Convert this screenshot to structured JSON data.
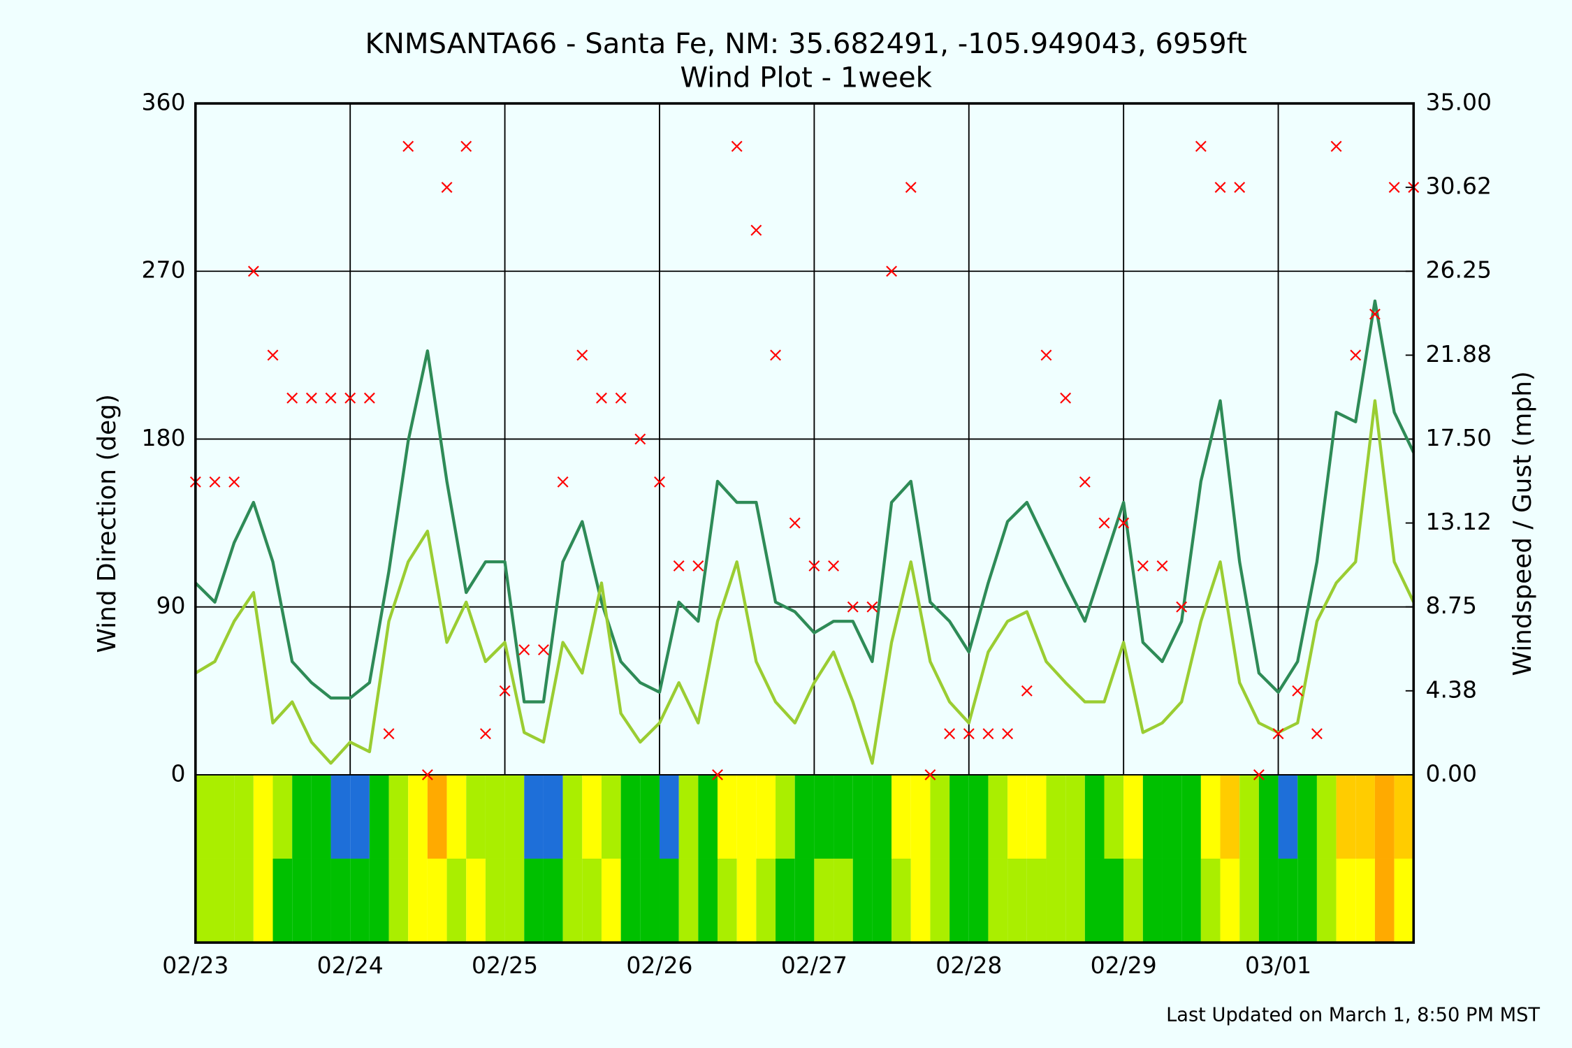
{
  "chart_data": {
    "type": "wind",
    "title": "KNMSANTA66 - Santa Fe, NM: 35.682491, -105.949043, 6959ft",
    "subtitle": "Wind Plot - 1week",
    "y_label": "Wind Direction (deg)",
    "y2_label": "Windspeed / Gust (mph)",
    "footer": "Last Updated on March 1, 8:50 PM MST",
    "x": [
      0,
      0.125,
      0.25,
      0.375,
      0.5,
      0.625,
      0.75,
      0.875,
      1,
      1.125,
      1.25,
      1.375,
      1.5,
      1.625,
      1.75,
      1.875,
      2,
      2.125,
      2.25,
      2.375,
      2.5,
      2.625,
      2.75,
      2.875,
      3,
      3.125,
      3.25,
      3.375,
      3.5,
      3.625,
      3.75,
      3.875,
      4,
      4.125,
      4.25,
      4.375,
      4.5,
      4.625,
      4.75,
      4.875,
      5,
      5.125,
      5.25,
      5.375,
      5.5,
      5.625,
      5.75,
      5.875,
      6,
      6.125,
      6.25,
      6.375,
      6.5,
      6.625,
      6.75,
      6.875,
      7,
      7.125,
      7.25,
      7.375,
      7.5,
      7.625,
      7.75,
      7.875
    ],
    "xlim": [
      0,
      7.875
    ],
    "xticks": [
      {
        "value": 0,
        "label": "02/23"
      },
      {
        "value": 1,
        "label": "02/24"
      },
      {
        "value": 2,
        "label": "02/25"
      },
      {
        "value": 3,
        "label": "02/26"
      },
      {
        "value": 4,
        "label": "02/27"
      },
      {
        "value": 5,
        "label": "02/28"
      },
      {
        "value": 6,
        "label": "02/29"
      },
      {
        "value": 7,
        "label": "03/01"
      }
    ],
    "ylim": [
      -90,
      360
    ],
    "yticks": [
      0,
      90,
      180,
      270,
      360
    ],
    "y2lim": [
      -8.75,
      35
    ],
    "y2ticks": [
      {
        "value": 0,
        "label": "0.00"
      },
      {
        "value": 4.375,
        "label": "4.38"
      },
      {
        "value": 8.75,
        "label": "8.75"
      },
      {
        "value": 13.125,
        "label": "13.12"
      },
      {
        "value": 17.5,
        "label": "17.50"
      },
      {
        "value": 21.875,
        "label": "21.88"
      },
      {
        "value": 26.25,
        "label": "26.25"
      },
      {
        "value": 30.625,
        "label": "30.62"
      },
      {
        "value": 35,
        "label": "35.00"
      }
    ],
    "grid": true,
    "y_label_color": "#ff0000",
    "y2_label_color": "#9acd32",
    "series": [
      {
        "type": "scatter",
        "marker": "x",
        "color": "#ff0000",
        "values": [
          157,
          157,
          157,
          270,
          225,
          202,
          202,
          202,
          202,
          202,
          22,
          337,
          0,
          315,
          337,
          22,
          45,
          67,
          67,
          157,
          225,
          202,
          202,
          180,
          157,
          112,
          112,
          0,
          337,
          292,
          225,
          135,
          112,
          112,
          90,
          90,
          270,
          315,
          0,
          22,
          22,
          22,
          22,
          45,
          225,
          202,
          157,
          135,
          135,
          112,
          112,
          90,
          337,
          315,
          315,
          0,
          22,
          45,
          22,
          337,
          225,
          247,
          315,
          315
        ]
      },
      {
        "type": "line",
        "axis": "y2",
        "color": "#2e8b57",
        "band_colors": [
          "#1e6fd9",
          "#00c000",
          "#aaee00",
          "#ffff00",
          "#ffcc00",
          "#ffaa00",
          "#ff8800",
          "#ff6600",
          "#ff4400"
        ],
        "values": [
          10.0,
          9.0,
          12.1,
          14.2,
          11.1,
          5.9,
          4.8,
          4.0,
          4.0,
          4.8,
          10.6,
          17.4,
          22.1,
          15.3,
          9.5,
          11.1,
          11.1,
          3.8,
          3.8,
          11.1,
          13.2,
          9.0,
          5.9,
          4.8,
          4.3,
          9.0,
          8.0,
          15.3,
          14.2,
          14.2,
          9.0,
          8.5,
          7.4,
          8.0,
          8.0,
          5.9,
          14.2,
          15.3,
          9.0,
          8.0,
          6.4,
          10.0,
          13.2,
          14.2,
          12.1,
          10.0,
          8.0,
          11.1,
          14.2,
          6.9,
          5.9,
          8.0,
          15.3,
          19.5,
          11.1,
          5.3,
          4.3,
          5.9,
          11.1,
          18.9,
          18.4,
          24.7,
          18.9,
          16.8
        ]
      },
      {
        "type": "line",
        "axis": "y2",
        "color": "#9acd32",
        "band_colors": [
          "#00c000",
          "#aaee00",
          "#ffff00",
          "#ffcc00",
          "#ffaa00",
          "#ff8800",
          "#ff6600",
          "#ff4400",
          "#ff2200"
        ],
        "values": [
          5.3,
          5.9,
          8.0,
          9.5,
          2.7,
          3.8,
          1.7,
          0.6,
          1.7,
          1.2,
          8.0,
          11.1,
          12.7,
          6.9,
          9.0,
          5.9,
          6.9,
          2.2,
          1.7,
          6.9,
          5.3,
          10.0,
          3.2,
          1.7,
          2.7,
          4.8,
          2.7,
          8.0,
          11.1,
          5.9,
          3.8,
          2.7,
          4.8,
          6.4,
          3.8,
          0.6,
          6.9,
          11.1,
          5.9,
          3.8,
          2.7,
          6.4,
          8.0,
          8.5,
          5.9,
          4.8,
          3.8,
          3.8,
          6.9,
          2.2,
          2.7,
          3.8,
          8.0,
          11.1,
          4.8,
          2.7,
          2.2,
          2.7,
          8.0,
          10.0,
          11.1,
          19.5,
          11.1,
          9.0
        ]
      }
    ]
  }
}
